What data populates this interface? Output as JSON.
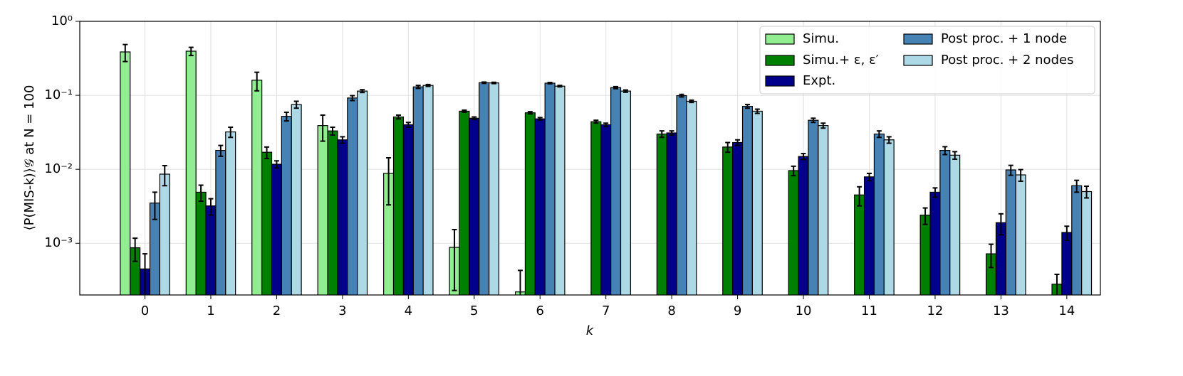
{
  "chart_data": {
    "type": "bar",
    "y_label": "⟨P(MIS-k)⟩𝒢 at N = 100",
    "x_label": "k",
    "categories": [
      "0",
      "1",
      "2",
      "3",
      "4",
      "5",
      "6",
      "7",
      "8",
      "9",
      "10",
      "11",
      "12",
      "13",
      "14"
    ],
    "log_scale_y": true,
    "ylim": [
      0.0002,
      1
    ],
    "yticks": [
      {
        "value": 1,
        "label": "10⁰"
      },
      {
        "value": 0.1,
        "label": "10⁻¹"
      },
      {
        "value": 0.01,
        "label": "10⁻²"
      },
      {
        "value": 0.001,
        "label": "10⁻³"
      }
    ],
    "grid": true,
    "legend": "upper right",
    "series": [
      {
        "name": "Simu.",
        "color": "#90ee90",
        "values": [
          0.386,
          0.395,
          0.16,
          0.039,
          0.0088,
          0.00088,
          0.00022,
          null,
          null,
          null,
          null,
          null,
          null,
          null,
          null
        ],
        "errors": [
          0.1,
          0.05,
          0.045,
          0.015,
          0.0055,
          0.00065,
          0.00021,
          null,
          null,
          null,
          null,
          null,
          null,
          null,
          null
        ]
      },
      {
        "name": "Simu.+ ε, ε′",
        "color": "#008000",
        "values": [
          0.00087,
          0.0049,
          0.017,
          0.033,
          0.051,
          0.061,
          0.058,
          0.044,
          0.03,
          0.02,
          0.0096,
          0.0045,
          0.0024,
          0.00072,
          0.00028
        ],
        "errors": [
          0.0003,
          0.0012,
          0.003,
          0.004,
          0.003,
          0.002,
          0.002,
          0.002,
          0.003,
          0.003,
          0.0014,
          0.0013,
          0.0006,
          0.00025,
          0.0001
        ]
      },
      {
        "name": "Expt.",
        "color": "#00008b",
        "values": [
          0.00045,
          0.0032,
          0.0117,
          0.025,
          0.04,
          0.049,
          0.048,
          0.04,
          0.031,
          0.023,
          0.0149,
          0.0079,
          0.0049,
          0.0019,
          0.0014
        ],
        "errors": [
          0.00027,
          0.0008,
          0.0013,
          0.0025,
          0.003,
          0.002,
          0.002,
          0.002,
          0.002,
          0.002,
          0.0014,
          0.0009,
          0.0007,
          0.0006,
          0.0003
        ]
      },
      {
        "name": "Post proc. + 1 node",
        "color": "#4682b4",
        "values": [
          0.0035,
          0.018,
          0.052,
          0.092,
          0.13,
          0.148,
          0.146,
          0.127,
          0.099,
          0.071,
          0.046,
          0.03,
          0.018,
          0.0098,
          0.006
        ],
        "errors": [
          0.0014,
          0.003,
          0.007,
          0.007,
          0.006,
          0.003,
          0.003,
          0.004,
          0.004,
          0.004,
          0.003,
          0.003,
          0.0022,
          0.0015,
          0.0011
        ]
      },
      {
        "name": "Post proc. + 2 nodes",
        "color": "#add8e6",
        "values": [
          0.0086,
          0.032,
          0.075,
          0.114,
          0.136,
          0.147,
          0.133,
          0.114,
          0.083,
          0.061,
          0.039,
          0.025,
          0.0155,
          0.0084,
          0.005
        ],
        "errors": [
          0.0026,
          0.005,
          0.008,
          0.005,
          0.004,
          0.003,
          0.003,
          0.004,
          0.003,
          0.004,
          0.003,
          0.0025,
          0.0018,
          0.0015,
          0.0009
        ]
      }
    ]
  }
}
